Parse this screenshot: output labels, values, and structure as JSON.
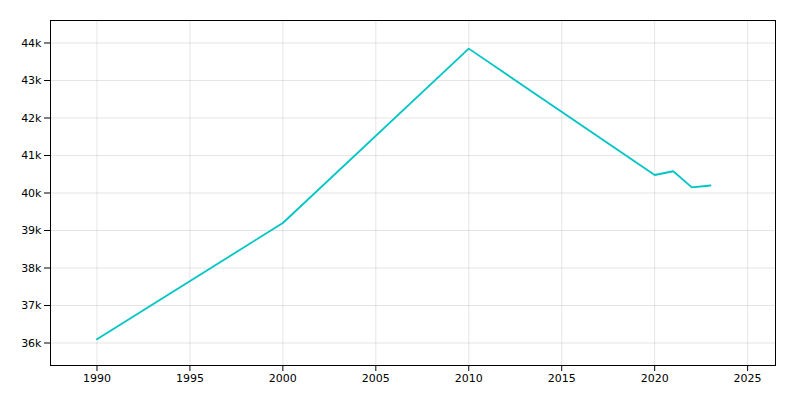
{
  "chart_data": {
    "type": "line",
    "x": [
      1990,
      2000,
      2010,
      2020,
      2021,
      2022,
      2023
    ],
    "values": [
      36100,
      39200,
      43850,
      40480,
      40580,
      40150,
      40200
    ],
    "color": "#00C5C5",
    "xlim": [
      1987.5,
      2026.5
    ],
    "ylim": [
      35400,
      44600
    ],
    "xticks": [
      1990,
      1995,
      2000,
      2005,
      2010,
      2015,
      2020,
      2025
    ],
    "yticks": [
      {
        "value": 36000,
        "label": "36k"
      },
      {
        "value": 37000,
        "label": "37k"
      },
      {
        "value": 38000,
        "label": "38k"
      },
      {
        "value": 39000,
        "label": "39k"
      },
      {
        "value": 40000,
        "label": "40k"
      },
      {
        "value": 41000,
        "label": "41k"
      },
      {
        "value": 42000,
        "label": "42k"
      },
      {
        "value": 43000,
        "label": "43k"
      },
      {
        "value": 44000,
        "label": "44k"
      }
    ],
    "grid": true
  }
}
